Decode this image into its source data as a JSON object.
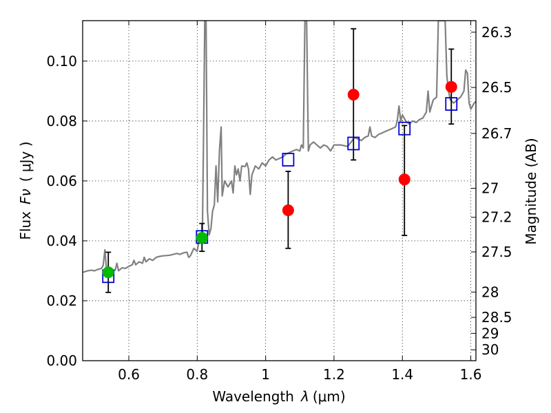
{
  "chart_data": {
    "type": "scatter",
    "title": "",
    "xlabel_text": "Wavelength",
    "xlabel_symbol": "λ",
    "xlabel_units": "(μm)",
    "ylabel_text": "Flux",
    "ylabel_symbol": "Fν",
    "ylabel_units": "( μJy )",
    "y2label": "Magnitude (AB)",
    "xlim": [
      0.465,
      1.615
    ],
    "ylim": [
      0.0,
      0.1135
    ],
    "grid": true,
    "x_ticks": [
      {
        "value": 0.6,
        "label": "0.6"
      },
      {
        "value": 0.8,
        "label": "0.8"
      },
      {
        "value": 1.0,
        "label": "1"
      },
      {
        "value": 1.2,
        "label": "1.2"
      },
      {
        "value": 1.4,
        "label": "1.4"
      },
      {
        "value": 1.6,
        "label": "1.6"
      }
    ],
    "y_ticks": [
      {
        "value": 0.0,
        "label": "0.00"
      },
      {
        "value": 0.02,
        "label": "0.02"
      },
      {
        "value": 0.04,
        "label": "0.04"
      },
      {
        "value": 0.06,
        "label": "0.06"
      },
      {
        "value": 0.08,
        "label": "0.08"
      },
      {
        "value": 0.1,
        "label": "0.10"
      }
    ],
    "mag_ticks": [
      {
        "value": 26.3,
        "label": "26.3"
      },
      {
        "value": 26.5,
        "label": "26.5"
      },
      {
        "value": 26.7,
        "label": "26.7"
      },
      {
        "value": 27.0,
        "label": "27"
      },
      {
        "value": 27.2,
        "label": "27.2"
      },
      {
        "value": 27.5,
        "label": "27.5"
      },
      {
        "value": 28.0,
        "label": "28"
      },
      {
        "value": 28.5,
        "label": "28.5"
      },
      {
        "value": 29.0,
        "label": "29"
      },
      {
        "value": 30.0,
        "label": "30"
      }
    ],
    "model_spectrum": {
      "name": "model SED",
      "color": "#808080",
      "points": [
        [
          0.465,
          0.0295
        ],
        [
          0.48,
          0.03
        ],
        [
          0.49,
          0.0302
        ],
        [
          0.5,
          0.03
        ],
        [
          0.51,
          0.0305
        ],
        [
          0.52,
          0.0308
        ],
        [
          0.525,
          0.0318
        ],
        [
          0.53,
          0.037
        ],
        [
          0.535,
          0.03
        ],
        [
          0.54,
          0.0305
        ],
        [
          0.55,
          0.03
        ],
        [
          0.56,
          0.0302
        ],
        [
          0.565,
          0.0325
        ],
        [
          0.57,
          0.03
        ],
        [
          0.58,
          0.031
        ],
        [
          0.59,
          0.0308
        ],
        [
          0.6,
          0.0315
        ],
        [
          0.61,
          0.032
        ],
        [
          0.615,
          0.0335
        ],
        [
          0.62,
          0.032
        ],
        [
          0.63,
          0.033
        ],
        [
          0.64,
          0.0325
        ],
        [
          0.645,
          0.0345
        ],
        [
          0.65,
          0.033
        ],
        [
          0.66,
          0.034
        ],
        [
          0.67,
          0.0335
        ],
        [
          0.68,
          0.0345
        ],
        [
          0.69,
          0.0348
        ],
        [
          0.7,
          0.035
        ],
        [
          0.72,
          0.0352
        ],
        [
          0.74,
          0.0358
        ],
        [
          0.75,
          0.0355
        ],
        [
          0.76,
          0.036
        ],
        [
          0.77,
          0.0362
        ],
        [
          0.775,
          0.0345
        ],
        [
          0.78,
          0.035
        ],
        [
          0.79,
          0.0375
        ],
        [
          0.795,
          0.037
        ],
        [
          0.8,
          0.0365
        ],
        [
          0.805,
          0.04
        ],
        [
          0.81,
          0.041
        ],
        [
          0.815,
          0.042
        ],
        [
          0.818,
          0.07
        ],
        [
          0.822,
          0.1135
        ],
        [
          0.826,
          0.1135
        ],
        [
          0.83,
          0.05
        ],
        [
          0.835,
          0.042
        ],
        [
          0.84,
          0.044
        ],
        [
          0.845,
          0.05
        ],
        [
          0.85,
          0.052
        ],
        [
          0.855,
          0.065
        ],
        [
          0.86,
          0.053
        ],
        [
          0.865,
          0.07
        ],
        [
          0.87,
          0.078
        ],
        [
          0.873,
          0.055
        ],
        [
          0.88,
          0.06
        ],
        [
          0.89,
          0.058
        ],
        [
          0.9,
          0.06
        ],
        [
          0.905,
          0.056
        ],
        [
          0.91,
          0.065
        ],
        [
          0.915,
          0.062
        ],
        [
          0.92,
          0.064
        ],
        [
          0.925,
          0.06
        ],
        [
          0.93,
          0.065
        ],
        [
          0.94,
          0.0648
        ],
        [
          0.945,
          0.066
        ],
        [
          0.95,
          0.064
        ],
        [
          0.955,
          0.0555
        ],
        [
          0.96,
          0.062
        ],
        [
          0.97,
          0.065
        ],
        [
          0.98,
          0.064
        ],
        [
          0.99,
          0.066
        ],
        [
          1.0,
          0.065
        ],
        [
          1.01,
          0.067
        ],
        [
          1.02,
          0.068
        ],
        [
          1.03,
          0.067
        ],
        [
          1.04,
          0.0675
        ],
        [
          1.05,
          0.068
        ],
        [
          1.06,
          0.069
        ],
        [
          1.07,
          0.0695
        ],
        [
          1.08,
          0.07
        ],
        [
          1.09,
          0.0705
        ],
        [
          1.1,
          0.07
        ],
        [
          1.105,
          0.072
        ],
        [
          1.11,
          0.071
        ],
        [
          1.115,
          0.1135
        ],
        [
          1.12,
          0.1135
        ],
        [
          1.125,
          0.07
        ],
        [
          1.13,
          0.072
        ],
        [
          1.14,
          0.073
        ],
        [
          1.15,
          0.072
        ],
        [
          1.16,
          0.071
        ],
        [
          1.17,
          0.072
        ],
        [
          1.18,
          0.0715
        ],
        [
          1.19,
          0.07
        ],
        [
          1.2,
          0.072
        ],
        [
          1.22,
          0.072
        ],
        [
          1.24,
          0.0715
        ],
        [
          1.25,
          0.073
        ],
        [
          1.26,
          0.0745
        ],
        [
          1.27,
          0.074
        ],
        [
          1.28,
          0.0735
        ],
        [
          1.29,
          0.0745
        ],
        [
          1.3,
          0.075
        ],
        [
          1.305,
          0.078
        ],
        [
          1.31,
          0.075
        ],
        [
          1.32,
          0.0745
        ],
        [
          1.33,
          0.0755
        ],
        [
          1.34,
          0.076
        ],
        [
          1.35,
          0.0765
        ],
        [
          1.36,
          0.077
        ],
        [
          1.37,
          0.0775
        ],
        [
          1.38,
          0.078
        ],
        [
          1.385,
          0.08
        ],
        [
          1.39,
          0.085
        ],
        [
          1.395,
          0.08
        ],
        [
          1.4,
          0.082
        ],
        [
          1.41,
          0.08
        ],
        [
          1.42,
          0.079
        ],
        [
          1.43,
          0.08
        ],
        [
          1.44,
          0.0795
        ],
        [
          1.45,
          0.0805
        ],
        [
          1.46,
          0.081
        ],
        [
          1.47,
          0.083
        ],
        [
          1.475,
          0.09
        ],
        [
          1.48,
          0.083
        ],
        [
          1.49,
          0.087
        ],
        [
          1.5,
          0.088
        ],
        [
          1.505,
          0.1135
        ],
        [
          1.51,
          0.1135
        ],
        [
          1.52,
          0.1135
        ],
        [
          1.525,
          0.1135
        ],
        [
          1.53,
          0.095
        ],
        [
          1.535,
          0.09
        ],
        [
          1.54,
          0.087
        ],
        [
          1.55,
          0.086
        ],
        [
          1.56,
          0.087
        ],
        [
          1.57,
          0.088
        ],
        [
          1.58,
          0.09
        ],
        [
          1.585,
          0.097
        ],
        [
          1.59,
          0.096
        ],
        [
          1.595,
          0.086
        ],
        [
          1.6,
          0.084
        ],
        [
          1.61,
          0.086
        ],
        [
          1.615,
          0.0865
        ]
      ]
    },
    "series": [
      {
        "name": "observed flux (red)",
        "color": "#ff0000",
        "marker": "circle",
        "points": [
          {
            "x": 1.066,
            "y": 0.0502,
            "yerr_low": 0.0375,
            "yerr_high": 0.0632
          },
          {
            "x": 1.257,
            "y": 0.0888,
            "yerr_low": 0.067,
            "yerr_high": 0.1108
          },
          {
            "x": 1.406,
            "y": 0.0605,
            "yerr_low": 0.0418,
            "yerr_high": 0.0785
          },
          {
            "x": 1.543,
            "y": 0.0914,
            "yerr_low": 0.079,
            "yerr_high": 0.104
          }
        ]
      },
      {
        "name": "observed flux (green)",
        "color": "#00bb00",
        "marker": "circle",
        "points": [
          {
            "x": 0.54,
            "y": 0.0295,
            "yerr_low": 0.0228,
            "yerr_high": 0.0362
          },
          {
            "x": 0.814,
            "y": 0.041,
            "yerr_low": 0.0365,
            "yerr_high": 0.0458
          }
        ]
      },
      {
        "name": "model band flux",
        "color": "#0000cc",
        "marker": "open-square",
        "points": [
          {
            "x": 0.54,
            "y": 0.0282
          },
          {
            "x": 0.814,
            "y": 0.0413
          },
          {
            "x": 1.066,
            "y": 0.0671
          },
          {
            "x": 1.257,
            "y": 0.0725
          },
          {
            "x": 1.406,
            "y": 0.0775
          },
          {
            "x": 1.543,
            "y": 0.0857
          }
        ]
      }
    ]
  }
}
